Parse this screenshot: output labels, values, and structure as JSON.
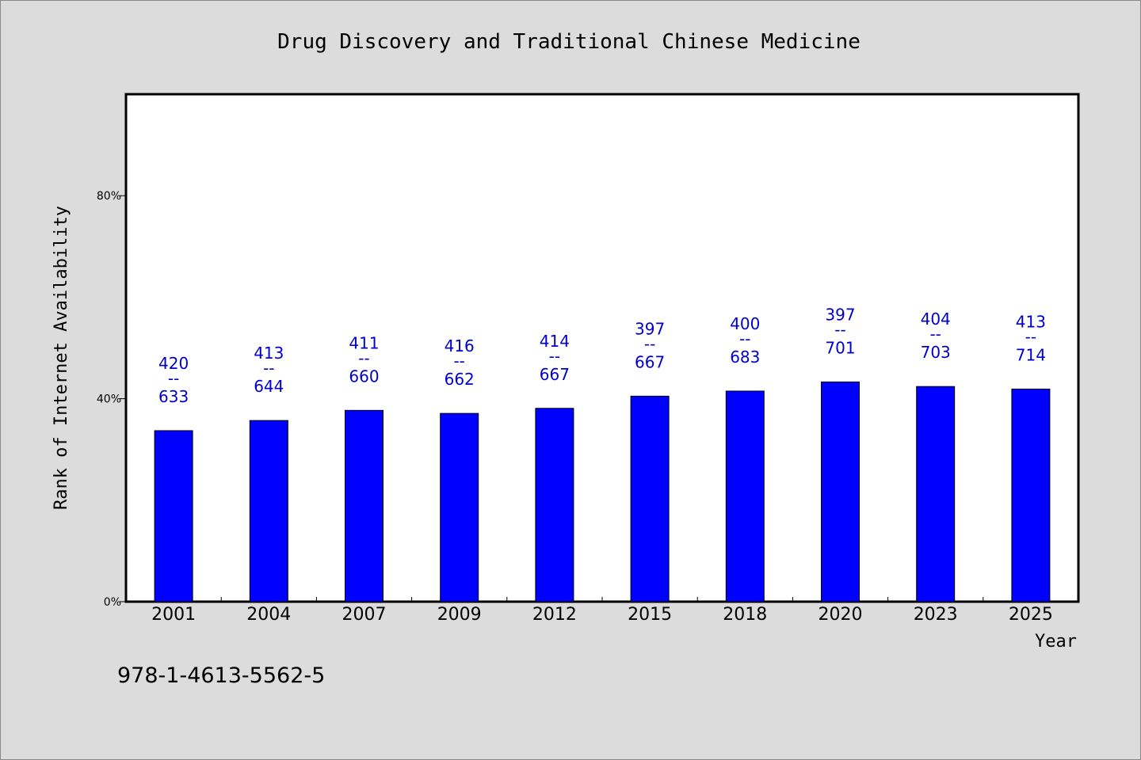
{
  "chart_data": {
    "type": "bar",
    "title": "Drug Discovery and Traditional Chinese Medicine",
    "xlabel": "Year",
    "ylabel": "Rank of Internet Availability",
    "categories": [
      "2001",
      "2004",
      "2007",
      "2009",
      "2012",
      "2015",
      "2018",
      "2020",
      "2023",
      "2025"
    ],
    "values": [
      0.337,
      0.357,
      0.377,
      0.371,
      0.381,
      0.405,
      0.415,
      0.433,
      0.424,
      0.419
    ],
    "bar_labels": [
      {
        "top": "420",
        "sep": "--",
        "bottom": "633"
      },
      {
        "top": "413",
        "sep": "--",
        "bottom": "644"
      },
      {
        "top": "411",
        "sep": "--",
        "bottom": "660"
      },
      {
        "top": "416",
        "sep": "--",
        "bottom": "662"
      },
      {
        "top": "414",
        "sep": "--",
        "bottom": "667"
      },
      {
        "top": "397",
        "sep": "--",
        "bottom": "667"
      },
      {
        "top": "400",
        "sep": "--",
        "bottom": "683"
      },
      {
        "top": "397",
        "sep": "--",
        "bottom": "701"
      },
      {
        "top": "404",
        "sep": "--",
        "bottom": "703"
      },
      {
        "top": "413",
        "sep": "--",
        "bottom": "714"
      }
    ],
    "yticks": [
      {
        "value": 0,
        "label": "0%"
      },
      {
        "value": 0.4,
        "label": "40%"
      },
      {
        "value": 0.8,
        "label": "80%"
      }
    ],
    "ylim": [
      0,
      1.0
    ],
    "grid": false,
    "legend": "none",
    "bar_color": "#0000ff",
    "label_color": "#0000cc"
  },
  "footer": {
    "isbn": "978-1-4613-5562-5"
  }
}
